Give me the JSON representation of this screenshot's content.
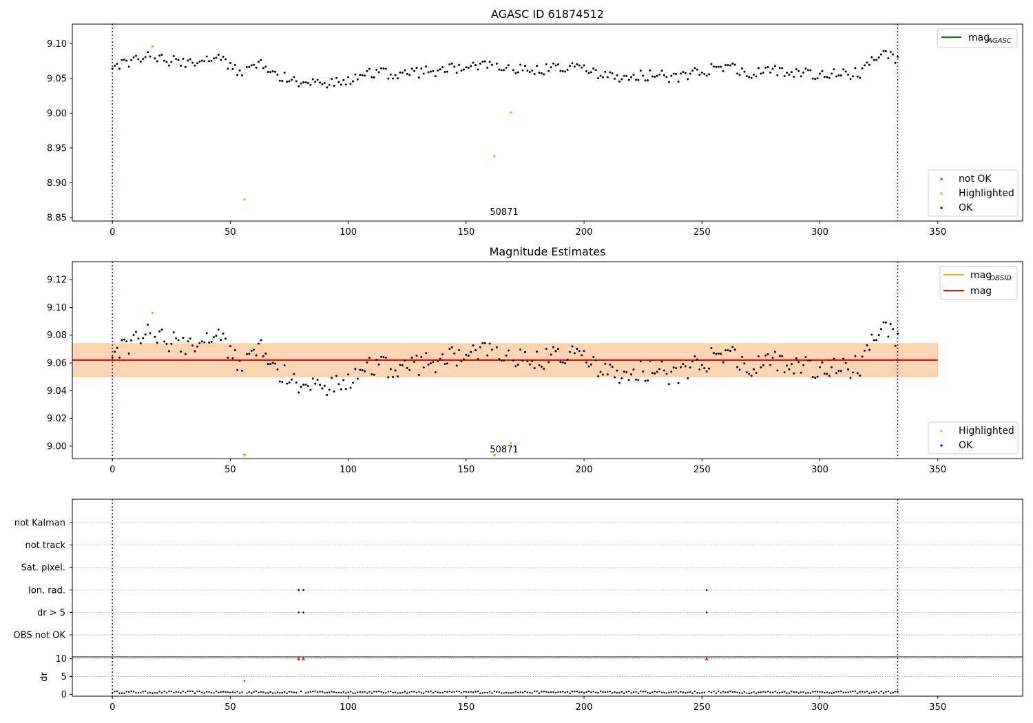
{
  "chart_data": [
    {
      "type": "scatter",
      "title": "AGASC ID 61874512",
      "xlim": [
        -17,
        386
      ],
      "ylim": [
        8.845,
        9.128
      ],
      "x_ticks": [
        0,
        50,
        100,
        150,
        200,
        250,
        300,
        350
      ],
      "y_ticks": [
        8.85,
        8.9,
        8.95,
        9.0,
        9.05,
        9.1
      ],
      "y_tick_labels": [
        "8.85",
        "8.90",
        "8.95",
        "9.00",
        "9.05",
        "9.10"
      ],
      "vlines": [
        0,
        333
      ],
      "annotation": {
        "text": "50871",
        "x": 166,
        "y": 8.853
      },
      "legend_top": [
        {
          "label": "mag",
          "sub": "AGASC",
          "color": "#008000"
        }
      ],
      "legend_bottom": [
        {
          "label": "not OK",
          "color": "#ff0000"
        },
        {
          "label": "Highlighted",
          "color": "#ffa500"
        },
        {
          "label": "OK",
          "color": "#000000"
        }
      ],
      "highlighted": [
        [
          17,
          9.096
        ],
        [
          56,
          8.876
        ],
        [
          162,
          8.938
        ],
        [
          169,
          9.001
        ]
      ],
      "ok_series": "main"
    },
    {
      "type": "scatter",
      "title": "Magnitude Estimates",
      "xlim": [
        -17,
        386
      ],
      "ylim": [
        8.991,
        9.133
      ],
      "x_ticks": [
        0,
        50,
        100,
        150,
        200,
        250,
        300,
        350
      ],
      "y_ticks": [
        9.0,
        9.02,
        9.04,
        9.06,
        9.08,
        9.1,
        9.12
      ],
      "y_tick_labels": [
        "9.00",
        "9.02",
        "9.04",
        "9.06",
        "9.08",
        "9.10",
        "9.12"
      ],
      "vlines": [
        0,
        333
      ],
      "mag_line": 9.062,
      "band_inner": [
        9.05,
        9.074
      ],
      "band_outer": [
        9.05,
        9.074
      ],
      "band_xrange": [
        -17,
        350
      ],
      "annotation": {
        "text": "50871",
        "x": 166,
        "y": 8.995
      },
      "off_scale_markers": [
        56,
        162
      ],
      "legend_top": [
        {
          "label": "mag",
          "sub": "OBSID",
          "color": "#ffa500"
        },
        {
          "label": "mag",
          "sub": "",
          "color": "#ff0000"
        }
      ],
      "legend_bottom": [
        {
          "label": "Highlighted",
          "color": "#ffa500"
        },
        {
          "label": "OK",
          "color": "#000000"
        }
      ],
      "highlighted": [
        [
          17,
          9.096
        ],
        [
          169,
          9.002
        ]
      ],
      "ok_series": "main"
    },
    {
      "type": "scatter",
      "title": "",
      "xlim": [
        -17,
        386
      ],
      "x_ticks": [
        0,
        50,
        100,
        150,
        200,
        250,
        300,
        350
      ],
      "vlines": [
        0,
        333
      ],
      "flag_rows": [
        "OBS not OK",
        "dr > 5",
        "Ion. rad.",
        "Sat. pixel.",
        "not track",
        "not Kalman"
      ],
      "flags": [
        {
          "row": "Ion. rad.",
          "x": [
            79,
            81,
            252
          ]
        },
        {
          "row": "dr > 5",
          "x": [
            79,
            81,
            252
          ]
        }
      ],
      "dr": {
        "ylabel": "dr",
        "ylim": [
          -0.5,
          10.5
        ],
        "y_ticks": [
          0,
          5,
          10
        ],
        "clipped_at_10": [
          79,
          81,
          252
        ],
        "outlier": [
          56,
          3.8
        ]
      }
    }
  ],
  "mag_seed": 61874512
}
